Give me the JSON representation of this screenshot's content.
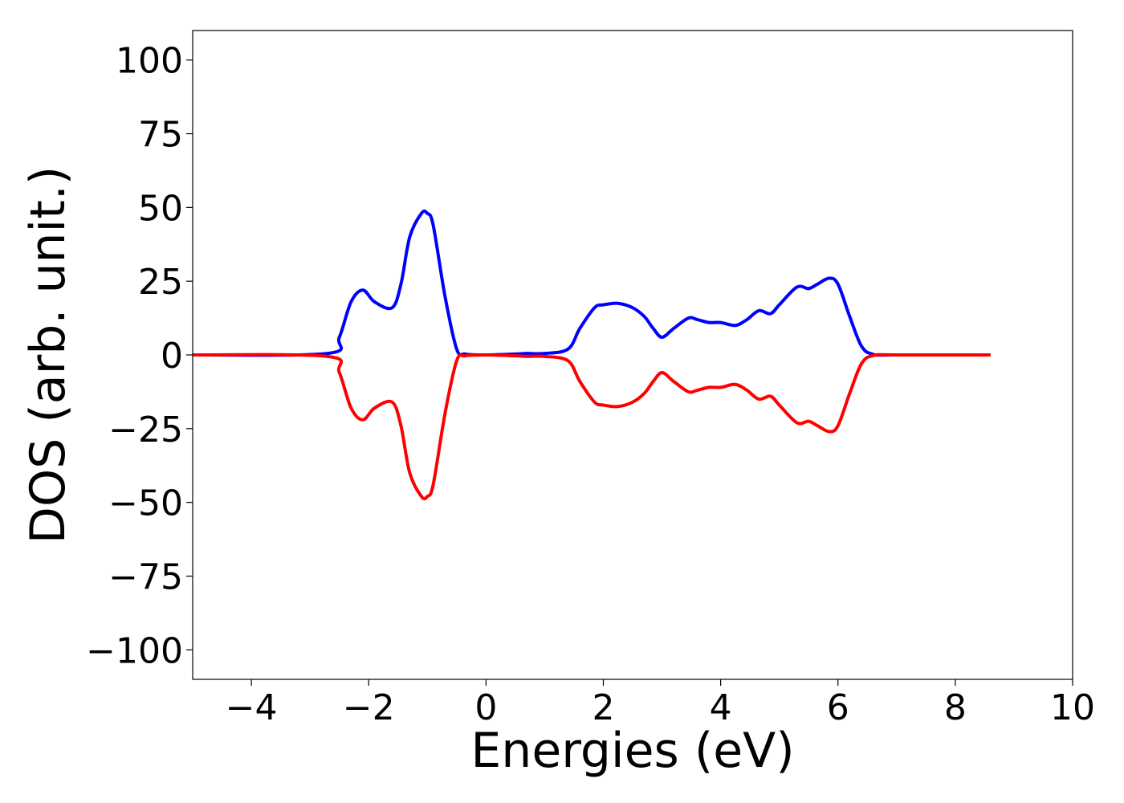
{
  "chart_data": {
    "type": "line",
    "title": "",
    "xlabel": "Energies (eV)",
    "ylabel": "DOS (arb. unit.)",
    "xlim": [
      -5,
      10
    ],
    "ylim": [
      -110,
      110
    ],
    "xticks": [
      -4,
      -2,
      0,
      2,
      4,
      6,
      8,
      10
    ],
    "yticks": [
      -100,
      -75,
      -50,
      -25,
      0,
      25,
      50,
      75,
      100
    ],
    "xtick_labels": [
      "−4",
      "−2",
      "0",
      "2",
      "4",
      "6",
      "8",
      "10"
    ],
    "ytick_labels": [
      "−100",
      "−75",
      "−50",
      "−25",
      "0",
      "25",
      "50",
      "75",
      "100"
    ],
    "grid": false,
    "legend": "none",
    "series": [
      {
        "color": "#0000ff",
        "x": [
          -5.0,
          -2.7,
          -2.5,
          -2.3,
          -2.1,
          -1.9,
          -1.6,
          -1.45,
          -1.3,
          -1.1,
          -1.0,
          -0.9,
          -0.7,
          -0.5,
          -0.35,
          0.0,
          0.5,
          0.7,
          1.0,
          1.4,
          1.6,
          1.85,
          2.0,
          2.25,
          2.5,
          2.7,
          2.85,
          3.0,
          3.2,
          3.45,
          3.6,
          3.8,
          4.0,
          4.25,
          4.45,
          4.65,
          4.85,
          5.0,
          5.3,
          5.5,
          5.65,
          5.85,
          6.0,
          6.2,
          6.4,
          6.6,
          7.0,
          8.6
        ],
        "y": [
          0,
          0.5,
          6,
          18,
          22,
          18,
          16,
          24,
          40,
          48,
          48,
          44,
          20,
          2,
          0.3,
          0,
          0.3,
          0.5,
          0.5,
          2,
          9,
          16,
          17,
          17.5,
          16,
          13,
          9,
          6,
          9,
          12.5,
          12,
          11,
          11,
          10,
          12,
          15,
          14,
          17,
          23,
          22.5,
          24,
          26,
          24,
          13,
          3,
          0.2,
          0,
          0
        ]
      },
      {
        "color": "#ff0000",
        "x": [
          -5.0,
          -2.7,
          -2.5,
          -2.3,
          -2.1,
          -1.9,
          -1.6,
          -1.45,
          -1.3,
          -1.1,
          -1.0,
          -0.9,
          -0.7,
          -0.5,
          -0.35,
          0.0,
          0.5,
          0.7,
          1.0,
          1.4,
          1.6,
          1.85,
          2.0,
          2.25,
          2.5,
          2.7,
          2.85,
          3.0,
          3.2,
          3.45,
          3.6,
          3.8,
          4.0,
          4.25,
          4.45,
          4.65,
          4.85,
          5.0,
          5.3,
          5.5,
          5.65,
          5.85,
          6.0,
          6.2,
          6.4,
          6.6,
          7.0,
          8.6
        ],
        "y": [
          0,
          -0.5,
          -6,
          -18,
          -22,
          -18,
          -16,
          -24,
          -40,
          -48,
          -48,
          -44,
          -20,
          -2,
          -0.3,
          0,
          -0.3,
          -0.5,
          -0.5,
          -2,
          -9,
          -16,
          -17,
          -17.5,
          -16,
          -13,
          -9,
          -6,
          -9,
          -12.5,
          -12,
          -11,
          -11,
          -10,
          -12,
          -15,
          -14,
          -17,
          -23,
          -22.5,
          -24,
          -26,
          -24,
          -13,
          -3,
          -0.2,
          0,
          0
        ]
      }
    ]
  }
}
